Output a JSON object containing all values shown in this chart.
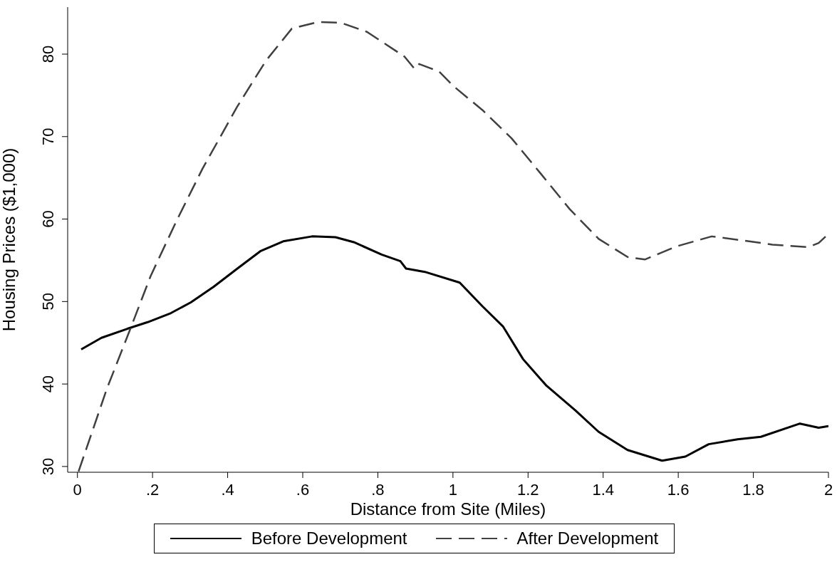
{
  "chart_data": {
    "type": "line",
    "xlabel": "Distance from Site (Miles)",
    "ylabel": "Housing Prices ($1,000)",
    "xlim": [
      -0.026,
      2.0
    ],
    "ylim": [
      29.3,
      85.7
    ],
    "xticks": [
      0,
      {
        "value": 0.2,
        "label": ".2"
      },
      {
        "value": 0.4,
        "label": ".4"
      },
      {
        "value": 0.6,
        "label": ".6"
      },
      {
        "value": 0.8,
        "label": ".8"
      },
      1,
      1.2,
      1.4,
      1.6,
      1.8,
      2
    ],
    "yticks": [
      30,
      40,
      50,
      60,
      70,
      80
    ],
    "grid": false,
    "legend": "bottom",
    "marker": "none",
    "series": [
      {
        "name": "Before Development",
        "color": "#000000",
        "line_style": "solid",
        "x": [
          0.01,
          0.064,
          0.133,
          0.187,
          0.249,
          0.302,
          0.363,
          0.426,
          0.487,
          0.548,
          0.625,
          0.687,
          0.736,
          0.81,
          0.86,
          0.875,
          0.925,
          1.018,
          1.079,
          1.133,
          1.187,
          1.249,
          1.326,
          1.388,
          1.465,
          1.557,
          1.619,
          1.681,
          1.758,
          1.82,
          1.924,
          1.974,
          2.0
        ],
        "values": [
          44.2,
          45.6,
          46.7,
          47.5,
          48.6,
          49.9,
          51.8,
          54.0,
          56.1,
          57.3,
          57.9,
          57.8,
          57.2,
          55.7,
          54.9,
          54.0,
          53.6,
          52.3,
          49.4,
          47.0,
          43.0,
          39.8,
          36.8,
          34.2,
          32.0,
          30.7,
          31.2,
          32.7,
          33.3,
          33.6,
          35.2,
          34.7,
          34.9
        ]
      },
      {
        "name": "After Development",
        "color": "#404040",
        "line_style": "dashed",
        "x": [
          0.003,
          0.079,
          0.141,
          0.195,
          0.264,
          0.333,
          0.425,
          0.502,
          0.571,
          0.641,
          0.702,
          0.771,
          0.871,
          0.898,
          0.91,
          0.963,
          1.002,
          1.079,
          1.156,
          1.234,
          1.311,
          1.388,
          1.465,
          1.511,
          1.596,
          1.689,
          1.774,
          1.851,
          1.947,
          1.974,
          2.0
        ],
        "values": [
          29.4,
          39.5,
          46.7,
          53.1,
          59.8,
          66.1,
          73.6,
          79.2,
          83.1,
          83.9,
          83.8,
          82.7,
          79.7,
          78.2,
          78.8,
          77.9,
          76.1,
          73.2,
          69.8,
          65.5,
          61.2,
          57.6,
          55.4,
          55.1,
          56.7,
          57.9,
          57.4,
          56.9,
          56.6,
          57.1,
          58.2
        ]
      }
    ]
  }
}
